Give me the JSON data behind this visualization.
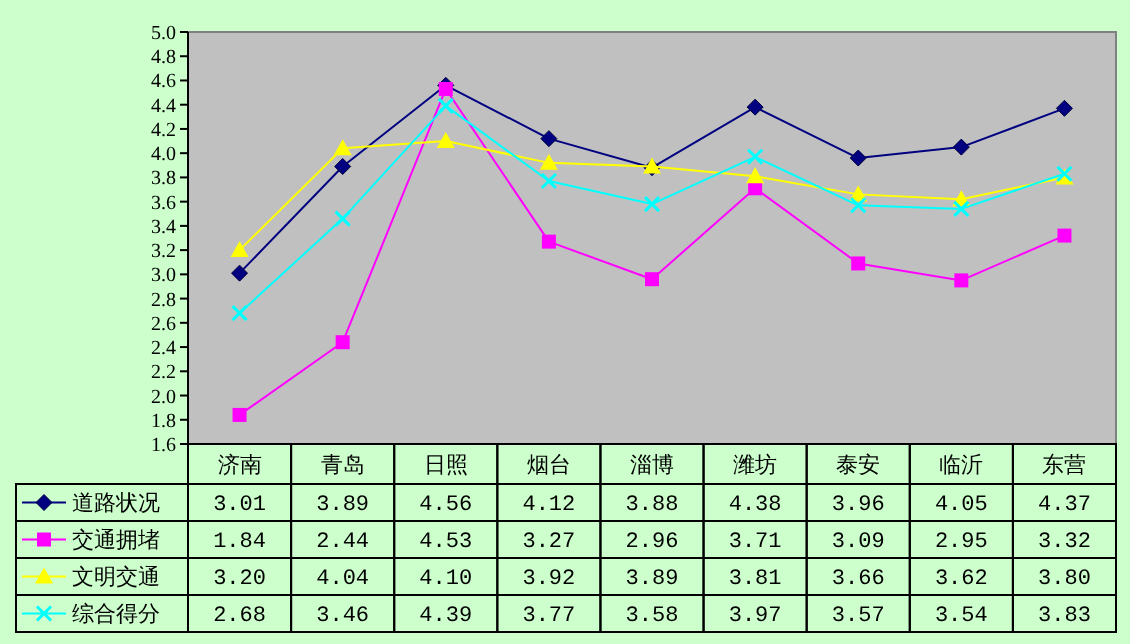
{
  "chart_data": {
    "type": "line",
    "categories": [
      "济南",
      "青岛",
      "日照",
      "烟台",
      "淄博",
      "潍坊",
      "泰安",
      "临沂",
      "东营"
    ],
    "series": [
      {
        "name": "道路状况",
        "color": "#000080",
        "marker": "diamond",
        "values": [
          3.01,
          3.89,
          4.56,
          4.12,
          3.88,
          4.38,
          3.96,
          4.05,
          4.37
        ],
        "value_labels": [
          "3.01",
          "3.89",
          "4.56",
          "4.12",
          "3.88",
          "4.38",
          "3.96",
          "4.05",
          "4.37"
        ]
      },
      {
        "name": "交通拥堵",
        "color": "#ff00ff",
        "marker": "square",
        "values": [
          1.84,
          2.44,
          4.53,
          3.27,
          2.96,
          3.71,
          3.09,
          2.95,
          3.32
        ],
        "value_labels": [
          "1.84",
          "2.44",
          "4.53",
          "3.27",
          "2.96",
          "3.71",
          "3.09",
          "2.95",
          "3.32"
        ]
      },
      {
        "name": "文明交通",
        "color": "#ffff00",
        "marker": "triangle",
        "values": [
          3.2,
          4.04,
          4.1,
          3.92,
          3.89,
          3.81,
          3.66,
          3.62,
          3.8
        ],
        "value_labels": [
          "3.20",
          "4.04",
          "4.10",
          "3.92",
          "3.89",
          "3.81",
          "3.66",
          "3.62",
          "3.80"
        ]
      },
      {
        "name": "综合得分",
        "color": "#00ffff",
        "marker": "cross",
        "values": [
          2.68,
          3.46,
          4.39,
          3.77,
          3.58,
          3.97,
          3.57,
          3.54,
          3.83
        ],
        "value_labels": [
          "2.68",
          "3.46",
          "4.39",
          "3.77",
          "3.58",
          "3.97",
          "3.57",
          "3.54",
          "3.83"
        ]
      }
    ],
    "ylim": [
      1.6,
      5.0
    ],
    "yticks": [
      {
        "value": 1.6,
        "label": "1.6"
      },
      {
        "value": 1.8,
        "label": "1.8"
      },
      {
        "value": 2.0,
        "label": "2.0"
      },
      {
        "value": 2.2,
        "label": "2.2"
      },
      {
        "value": 2.4,
        "label": "2.4"
      },
      {
        "value": 2.6,
        "label": "2.6"
      },
      {
        "value": 2.8,
        "label": "2.8"
      },
      {
        "value": 3.0,
        "label": "3.0"
      },
      {
        "value": 3.2,
        "label": "3.2"
      },
      {
        "value": 3.4,
        "label": "3.4"
      },
      {
        "value": 3.6,
        "label": "3.6"
      },
      {
        "value": 3.8,
        "label": "3.8"
      },
      {
        "value": 4.0,
        "label": "4.0"
      },
      {
        "value": 4.2,
        "label": "4.2"
      },
      {
        "value": 4.4,
        "label": "4.4"
      },
      {
        "value": 4.6,
        "label": "4.6"
      },
      {
        "value": 4.8,
        "label": "4.8"
      },
      {
        "value": 5.0,
        "label": "5.0"
      }
    ],
    "legend": "bottom left"
  }
}
